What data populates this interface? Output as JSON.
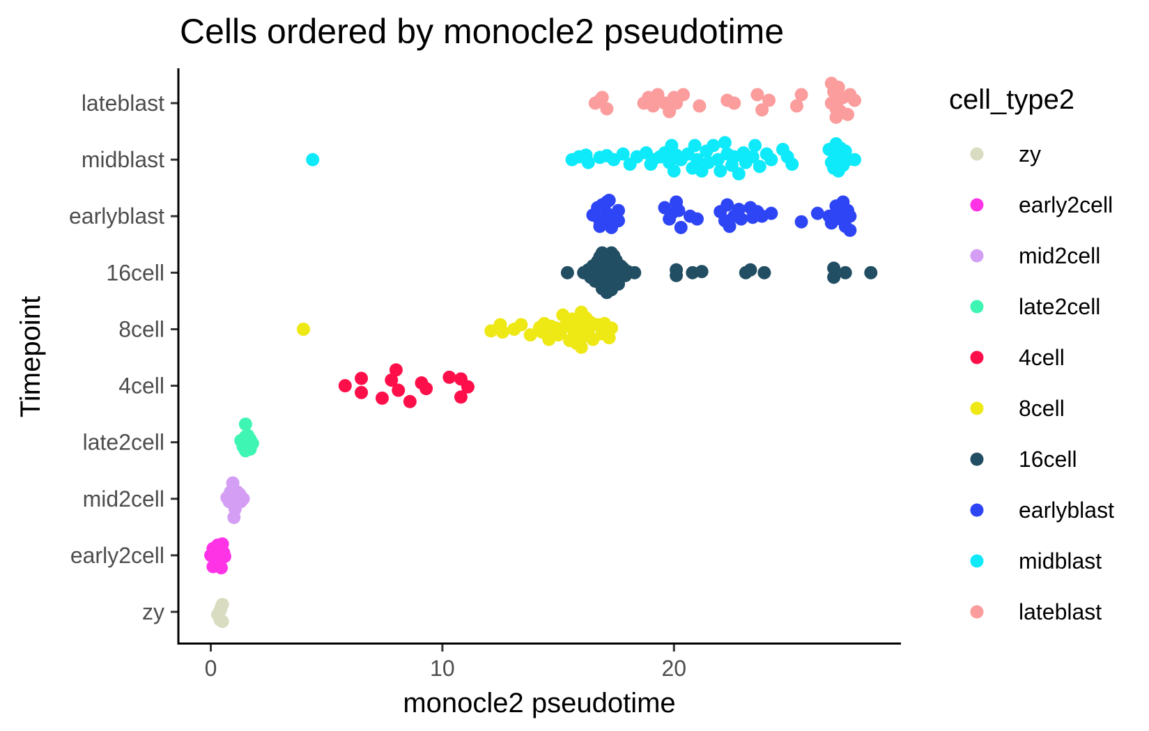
{
  "chart_data": {
    "type": "scatter",
    "title": "Cells ordered by monocle2 pseudotime",
    "xlabel": "monocle2 pseudotime",
    "ylabel": "Timepoint",
    "xlim": [
      -1.4,
      29.8
    ],
    "xticks": [
      0,
      10,
      20
    ],
    "categories": [
      "zy",
      "early2cell",
      "mid2cell",
      "late2cell",
      "4cell",
      "8cell",
      "16cell",
      "earlyblast",
      "midblast",
      "lateblast"
    ],
    "grid": false,
    "legend": {
      "title": "cell_type2",
      "position": "right",
      "entries": [
        "zy",
        "early2cell",
        "mid2cell",
        "late2cell",
        "4cell",
        "8cell",
        "16cell",
        "earlyblast",
        "midblast",
        "lateblast"
      ]
    },
    "series": [
      {
        "name": "zy",
        "color": "#d9dcc0",
        "points": [
          [
            0.4,
            -0.14
          ],
          [
            0.4,
            0.02
          ],
          [
            0.5,
            0.13
          ],
          [
            0.5,
            -0.17
          ],
          [
            0.3,
            -0.05
          ],
          [
            0.45,
            0.08
          ]
        ]
      },
      {
        "name": "early2cell",
        "color": "#ff33e6",
        "points": [
          [
            0.0,
            0.0
          ],
          [
            0.1,
            0.12
          ],
          [
            0.2,
            -0.08
          ],
          [
            0.3,
            0.05
          ],
          [
            0.4,
            -0.1
          ],
          [
            0.5,
            0.2
          ],
          [
            0.6,
            -0.02
          ],
          [
            0.1,
            -0.2
          ],
          [
            0.3,
            0.18
          ],
          [
            0.45,
            -0.22
          ],
          [
            0.55,
            0.05
          ],
          [
            0.2,
            0.02
          ],
          [
            0.35,
            -0.15
          ]
        ]
      },
      {
        "name": "mid2cell",
        "color": "#d49ef4",
        "points": [
          [
            0.9,
            0.0
          ],
          [
            1.0,
            0.15
          ],
          [
            1.1,
            -0.1
          ],
          [
            1.2,
            0.05
          ],
          [
            0.8,
            -0.05
          ],
          [
            0.95,
            0.28
          ],
          [
            1.0,
            -0.33
          ],
          [
            1.3,
            -0.05
          ],
          [
            1.4,
            0.0
          ],
          [
            0.7,
            0.02
          ],
          [
            1.15,
            0.12
          ],
          [
            0.85,
            0.12
          ],
          [
            1.05,
            -0.18
          ],
          [
            1.25,
            0.08
          ],
          [
            0.95,
            -0.08
          ]
        ]
      },
      {
        "name": "late2cell",
        "color": "#3ef5b3",
        "points": [
          [
            1.5,
            0.32
          ],
          [
            1.5,
            0.1
          ],
          [
            1.4,
            0.0
          ],
          [
            1.6,
            -0.1
          ],
          [
            1.7,
            0.05
          ],
          [
            1.8,
            -0.02
          ],
          [
            1.3,
            0.03
          ],
          [
            1.5,
            -0.15
          ],
          [
            1.6,
            0.12
          ],
          [
            1.4,
            -0.08
          ],
          [
            1.7,
            -0.12
          ],
          [
            1.55,
            0.02
          ]
        ]
      },
      {
        "name": "4cell",
        "color": "#ff0f4a",
        "points": [
          [
            5.8,
            0.0
          ],
          [
            6.5,
            0.13
          ],
          [
            6.5,
            -0.12
          ],
          [
            7.4,
            -0.22
          ],
          [
            7.8,
            0.1
          ],
          [
            8.0,
            0.28
          ],
          [
            8.1,
            -0.08
          ],
          [
            8.6,
            -0.28
          ],
          [
            9.1,
            0.05
          ],
          [
            9.3,
            -0.05
          ],
          [
            10.3,
            0.15
          ],
          [
            10.8,
            0.12
          ],
          [
            11.1,
            -0.02
          ],
          [
            10.8,
            -0.2
          ]
        ]
      },
      {
        "name": "8cell",
        "color": "#eee815",
        "points": [
          [
            4.0,
            0.0
          ],
          [
            12.1,
            -0.03
          ],
          [
            12.5,
            0.08
          ],
          [
            12.6,
            -0.05
          ],
          [
            13.1,
            0.0
          ],
          [
            13.4,
            0.08
          ],
          [
            13.8,
            -0.1
          ],
          [
            14.2,
            0.03
          ],
          [
            14.4,
            0.1
          ],
          [
            14.6,
            -0.18
          ],
          [
            14.7,
            0.05
          ],
          [
            15.0,
            -0.1
          ],
          [
            15.2,
            0.25
          ],
          [
            15.3,
            0.05
          ],
          [
            15.5,
            -0.2
          ],
          [
            15.6,
            0.18
          ],
          [
            15.7,
            -0.05
          ],
          [
            15.9,
            0.1
          ],
          [
            16.0,
            0.3
          ],
          [
            16.1,
            -0.12
          ],
          [
            16.3,
            -0.05
          ],
          [
            16.4,
            0.12
          ],
          [
            16.5,
            -0.18
          ],
          [
            16.7,
            0.08
          ],
          [
            16.9,
            -0.08
          ],
          [
            17.0,
            0.1
          ],
          [
            17.2,
            -0.15
          ],
          [
            17.3,
            0.02
          ],
          [
            15.1,
            -0.05
          ],
          [
            14.9,
            0.02
          ],
          [
            15.8,
            -0.25
          ],
          [
            16.2,
            0.2
          ],
          [
            16.0,
            -0.32
          ],
          [
            15.4,
            0.1
          ],
          [
            14.3,
            -0.05
          ]
        ]
      },
      {
        "name": "16cell",
        "color": "#224e63",
        "points": [
          [
            15.4,
            0.0
          ],
          [
            16.1,
            0.0
          ],
          [
            16.3,
            0.05
          ],
          [
            16.4,
            -0.08
          ],
          [
            16.5,
            0.12
          ],
          [
            16.6,
            -0.15
          ],
          [
            16.7,
            0.2
          ],
          [
            16.8,
            -0.05
          ],
          [
            16.9,
            0.1
          ],
          [
            17.0,
            -0.2
          ],
          [
            17.0,
            0.25
          ],
          [
            17.1,
            0.0
          ],
          [
            17.2,
            -0.1
          ],
          [
            17.2,
            0.15
          ],
          [
            17.3,
            0.35
          ],
          [
            17.3,
            -0.3
          ],
          [
            17.4,
            0.05
          ],
          [
            17.5,
            -0.12
          ],
          [
            17.5,
            0.22
          ],
          [
            17.6,
            0.0
          ],
          [
            17.7,
            -0.08
          ],
          [
            17.7,
            0.12
          ],
          [
            17.8,
            0.08
          ],
          [
            17.9,
            -0.05
          ],
          [
            18.0,
            0.02
          ],
          [
            18.3,
            0.0
          ],
          [
            16.9,
            0.35
          ],
          [
            17.1,
            -0.35
          ],
          [
            16.9,
            -0.28
          ],
          [
            17.4,
            0.3
          ],
          [
            16.8,
            0.28
          ],
          [
            17.2,
            0.3
          ],
          [
            17.0,
            0.05
          ],
          [
            17.2,
            -0.22
          ],
          [
            16.6,
            0.08
          ],
          [
            17.6,
            -0.2
          ],
          [
            20.1,
            0.05
          ],
          [
            20.1,
            -0.05
          ],
          [
            20.8,
            0.0
          ],
          [
            21.2,
            0.02
          ],
          [
            23.1,
            0.0
          ],
          [
            23.3,
            0.05
          ],
          [
            23.9,
            0.0
          ],
          [
            26.9,
            0.08
          ],
          [
            26.9,
            -0.08
          ],
          [
            27.4,
            0.0
          ],
          [
            28.5,
            0.0
          ]
        ]
      },
      {
        "name": "earlyblast",
        "color": "#2e45f5",
        "points": [
          [
            16.5,
            0.02
          ],
          [
            16.7,
            0.15
          ],
          [
            16.8,
            -0.08
          ],
          [
            16.9,
            0.2
          ],
          [
            17.0,
            -0.12
          ],
          [
            17.1,
            0.05
          ],
          [
            17.2,
            0.28
          ],
          [
            17.3,
            -0.2
          ],
          [
            17.4,
            0.0
          ],
          [
            17.6,
            0.1
          ],
          [
            17.6,
            -0.08
          ],
          [
            16.8,
            -0.18
          ],
          [
            17.1,
            0.25
          ],
          [
            19.6,
            0.15
          ],
          [
            19.8,
            -0.05
          ],
          [
            19.9,
            0.05
          ],
          [
            20.1,
            0.25
          ],
          [
            20.2,
            0.1
          ],
          [
            20.3,
            -0.2
          ],
          [
            20.7,
            0.0
          ],
          [
            21.0,
            -0.05
          ],
          [
            22.0,
            0.08
          ],
          [
            22.2,
            -0.08
          ],
          [
            22.3,
            0.2
          ],
          [
            22.4,
            -0.18
          ],
          [
            22.6,
            0.0
          ],
          [
            22.8,
            0.12
          ],
          [
            22.9,
            -0.05
          ],
          [
            23.3,
            0.15
          ],
          [
            23.4,
            -0.02
          ],
          [
            23.6,
            0.08
          ],
          [
            23.8,
            0.0
          ],
          [
            24.2,
            0.05
          ],
          [
            25.5,
            -0.1
          ],
          [
            26.2,
            0.05
          ],
          [
            26.7,
            0.0
          ],
          [
            26.8,
            -0.12
          ],
          [
            27.0,
            0.18
          ],
          [
            27.1,
            0.08
          ],
          [
            27.2,
            -0.05
          ],
          [
            27.3,
            0.25
          ],
          [
            27.4,
            -0.18
          ],
          [
            27.5,
            0.1
          ],
          [
            27.6,
            0.0
          ],
          [
            27.6,
            -0.25
          ]
        ]
      },
      {
        "name": "midblast",
        "color": "#0eeafa",
        "points": [
          [
            4.4,
            0.0
          ],
          [
            15.6,
            0.0
          ],
          [
            15.9,
            0.05
          ],
          [
            16.2,
            0.08
          ],
          [
            16.3,
            -0.05
          ],
          [
            16.8,
            0.04
          ],
          [
            17.1,
            0.07
          ],
          [
            17.4,
            0.0
          ],
          [
            17.8,
            0.1
          ],
          [
            18.1,
            -0.08
          ],
          [
            18.4,
            0.05
          ],
          [
            18.8,
            0.12
          ],
          [
            19.0,
            -0.08
          ],
          [
            19.1,
            0.0
          ],
          [
            19.4,
            0.05
          ],
          [
            19.6,
            0.12
          ],
          [
            19.8,
            -0.05
          ],
          [
            19.9,
            0.25
          ],
          [
            20.0,
            -0.2
          ],
          [
            20.1,
            0.08
          ],
          [
            20.3,
            0.0
          ],
          [
            20.6,
            0.1
          ],
          [
            20.8,
            -0.15
          ],
          [
            20.9,
            0.25
          ],
          [
            21.0,
            0.0
          ],
          [
            21.2,
            -0.2
          ],
          [
            21.4,
            0.15
          ],
          [
            21.5,
            -0.05
          ],
          [
            21.7,
            0.25
          ],
          [
            21.9,
            0.0
          ],
          [
            22.0,
            -0.2
          ],
          [
            22.2,
            0.3
          ],
          [
            22.3,
            0.1
          ],
          [
            22.5,
            -0.1
          ],
          [
            22.6,
            0.05
          ],
          [
            22.8,
            -0.25
          ],
          [
            23.0,
            0.12
          ],
          [
            23.1,
            -0.05
          ],
          [
            23.4,
            0.05
          ],
          [
            23.5,
            0.25
          ],
          [
            23.7,
            -0.12
          ],
          [
            24.0,
            0.1
          ],
          [
            24.2,
            0.0
          ],
          [
            24.7,
            0.18
          ],
          [
            24.9,
            0.05
          ],
          [
            25.1,
            -0.08
          ],
          [
            26.7,
            0.18
          ],
          [
            26.8,
            -0.05
          ],
          [
            26.9,
            0.12
          ],
          [
            27.0,
            0.28
          ],
          [
            27.1,
            -0.2
          ],
          [
            27.2,
            0.05
          ],
          [
            27.3,
            -0.1
          ],
          [
            27.4,
            0.15
          ],
          [
            27.5,
            0.0
          ],
          [
            27.0,
            0.0
          ],
          [
            27.2,
            0.2
          ],
          [
            26.9,
            -0.15
          ],
          [
            27.8,
            0.0
          ]
        ]
      },
      {
        "name": "lateblast",
        "color": "#fb9c9d",
        "points": [
          [
            16.6,
            0.0
          ],
          [
            16.9,
            0.1
          ],
          [
            17.1,
            -0.1
          ],
          [
            16.8,
            0.05
          ],
          [
            18.7,
            0.0
          ],
          [
            18.9,
            0.1
          ],
          [
            19.1,
            -0.05
          ],
          [
            19.3,
            0.15
          ],
          [
            19.6,
            0.0
          ],
          [
            19.8,
            -0.15
          ],
          [
            20.0,
            0.1
          ],
          [
            20.1,
            0.0
          ],
          [
            20.4,
            0.15
          ],
          [
            21.1,
            -0.05
          ],
          [
            22.3,
            0.05
          ],
          [
            22.6,
            0.0
          ],
          [
            23.6,
            0.15
          ],
          [
            23.8,
            -0.12
          ],
          [
            24.1,
            0.05
          ],
          [
            25.3,
            -0.05
          ],
          [
            25.5,
            0.15
          ],
          [
            26.8,
            0.35
          ],
          [
            26.9,
            0.2
          ],
          [
            27.0,
            -0.1
          ],
          [
            27.1,
            0.05
          ],
          [
            26.8,
            0.0
          ],
          [
            27.0,
            -0.25
          ],
          [
            27.1,
            0.28
          ],
          [
            27.2,
            -0.15
          ],
          [
            27.3,
            0.1
          ],
          [
            27.5,
            -0.2
          ],
          [
            27.6,
            0.15
          ],
          [
            27.8,
            0.05
          ],
          [
            27.0,
            0.12
          ]
        ]
      }
    ]
  }
}
